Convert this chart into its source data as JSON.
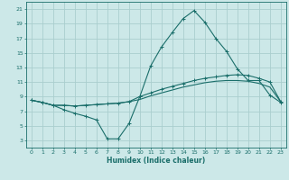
{
  "xlabel": "Humidex (Indice chaleur)",
  "bg_color": "#cce8e8",
  "line_color": "#1a6e6a",
  "grid_color": "#aacece",
  "xlim": [
    -0.5,
    23.5
  ],
  "ylim": [
    2,
    22
  ],
  "yticks": [
    3,
    5,
    7,
    9,
    11,
    13,
    15,
    17,
    19,
    21
  ],
  "xticks": [
    0,
    1,
    2,
    3,
    4,
    5,
    6,
    7,
    8,
    9,
    10,
    11,
    12,
    13,
    14,
    15,
    16,
    17,
    18,
    19,
    20,
    21,
    22,
    23
  ],
  "line1_x": [
    0,
    1,
    2,
    3,
    4,
    5,
    6,
    7,
    8,
    9,
    10,
    11,
    12,
    13,
    14,
    15,
    16,
    17,
    18,
    19,
    20,
    21,
    22,
    23
  ],
  "line1_y": [
    8.5,
    8.2,
    7.8,
    7.2,
    6.7,
    6.3,
    5.8,
    3.2,
    3.2,
    5.3,
    9.0,
    13.2,
    15.8,
    17.8,
    19.7,
    20.8,
    19.2,
    17.0,
    15.2,
    12.8,
    11.2,
    11.2,
    9.2,
    8.2
  ],
  "line2_x": [
    0,
    1,
    2,
    3,
    4,
    5,
    6,
    7,
    8,
    9,
    10,
    11,
    12,
    13,
    14,
    15,
    16,
    17,
    18,
    19,
    20,
    21,
    22,
    23
  ],
  "line2_y": [
    8.5,
    8.2,
    7.8,
    7.8,
    7.7,
    7.8,
    7.9,
    8.0,
    8.1,
    8.3,
    9.0,
    9.5,
    10.0,
    10.4,
    10.8,
    11.2,
    11.5,
    11.7,
    11.9,
    12.0,
    11.9,
    11.5,
    11.0,
    8.3
  ],
  "line3_x": [
    0,
    1,
    2,
    3,
    4,
    5,
    6,
    7,
    8,
    9,
    10,
    11,
    12,
    13,
    14,
    15,
    16,
    17,
    18,
    19,
    20,
    21,
    22,
    23
  ],
  "line3_y": [
    8.5,
    8.2,
    7.8,
    7.8,
    7.7,
    7.8,
    7.9,
    8.0,
    8.1,
    8.3,
    8.6,
    9.1,
    9.5,
    9.9,
    10.3,
    10.6,
    10.9,
    11.1,
    11.2,
    11.2,
    11.1,
    10.8,
    10.3,
    8.3
  ]
}
